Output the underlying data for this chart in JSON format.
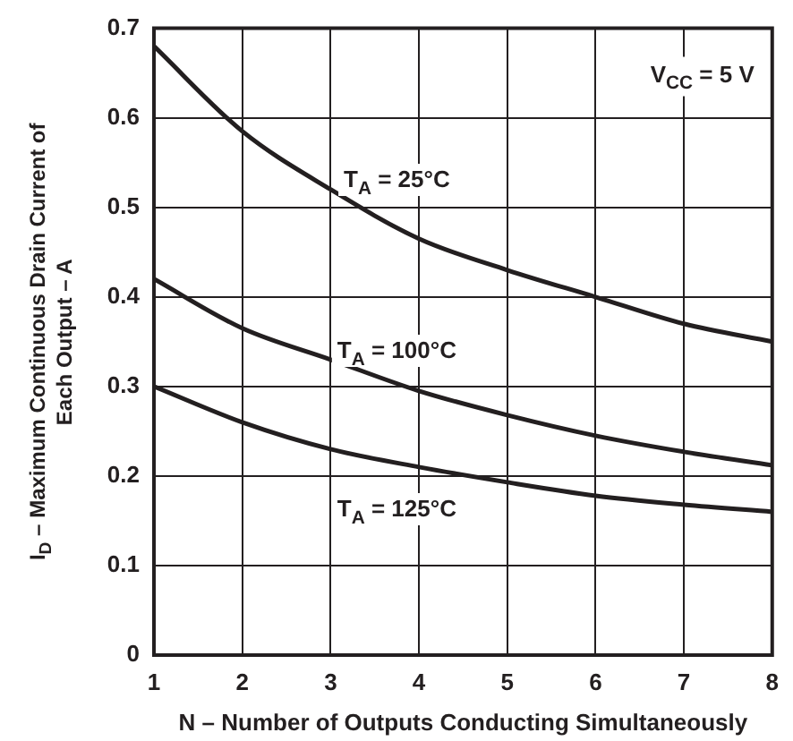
{
  "chart_data": {
    "type": "line",
    "xlabel": "N – Number of Outputs Conducting Simultaneously",
    "ylabel": "I$_{D}$ – Maximum Continuous Drain Current of Each Output – A",
    "x": [
      1,
      2,
      3,
      4,
      5,
      6,
      7,
      8
    ],
    "series": [
      {
        "name": "T$_{A}$ = 25°C",
        "color": "#231f20",
        "values": [
          0.68,
          0.585,
          0.52,
          0.465,
          0.43,
          0.4,
          0.37,
          0.35
        ]
      },
      {
        "name": "T$_{A}$ = 100°C",
        "color": "#231f20",
        "values": [
          0.42,
          0.365,
          0.33,
          0.295,
          0.268,
          0.245,
          0.227,
          0.212
        ]
      },
      {
        "name": "T$_{A}$ = 125°C",
        "color": "#231f20",
        "values": [
          0.3,
          0.26,
          0.23,
          0.21,
          0.193,
          0.178,
          0.168,
          0.16
        ]
      }
    ],
    "annotations": [
      "V$_{CC}$ = 5 V"
    ],
    "xlim": [
      1,
      8
    ],
    "xticks": [
      1,
      2,
      3,
      4,
      5,
      6,
      7,
      8
    ],
    "ylim": [
      0,
      0.7
    ],
    "yticks": [
      0,
      0.1,
      0.2,
      0.3,
      0.4,
      0.5,
      0.6,
      0.7
    ],
    "grid": true,
    "legend": false,
    "marker": "none",
    "line_style": "solid"
  }
}
